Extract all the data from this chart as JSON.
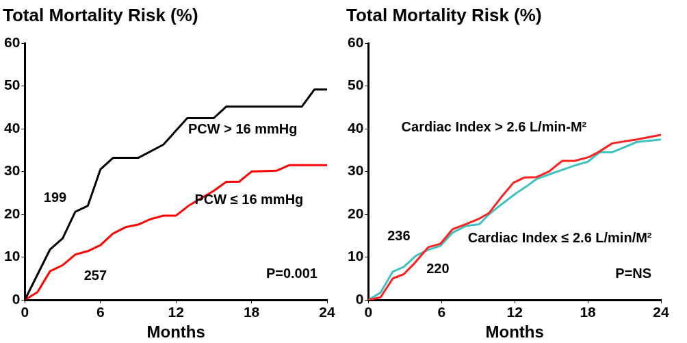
{
  "chart_data": [
    {
      "type": "line",
      "title": "Total Mortality Risk (%)",
      "xlabel": "Months",
      "xlim": [
        0,
        24
      ],
      "xticks": [
        0,
        6,
        12,
        18,
        24
      ],
      "ylim": [
        0,
        60
      ],
      "yticks": [
        0,
        10,
        20,
        30,
        40,
        50,
        60
      ],
      "grid": false,
      "legend": false,
      "marker": "none",
      "line_style": "solid",
      "series": [
        {
          "name": "PCW > 16 mmHg",
          "color": "#000000",
          "x": [
            0,
            2,
            3,
            4,
            5,
            6,
            7,
            9,
            11,
            11.7,
            12.9,
            15,
            16,
            22,
            23,
            24
          ],
          "values": [
            0,
            11.8,
            14.4,
            20.6,
            22,
            30.5,
            33.2,
            33.2,
            36.3,
            38.6,
            42.5,
            42.5,
            45.2,
            45.2,
            49.2,
            49.2
          ]
        },
        {
          "name": "PCW ≤ 16 mmHg",
          "color": "#ff0000",
          "x": [
            0,
            1,
            2,
            3,
            4,
            5,
            6,
            7,
            8,
            9,
            10,
            11,
            12,
            13,
            15,
            16,
            17,
            18,
            20,
            21,
            24
          ],
          "values": [
            0,
            1.8,
            6.7,
            8.1,
            10.6,
            11.4,
            12.8,
            15.5,
            17,
            17.6,
            18.9,
            19.7,
            19.7,
            22,
            25.5,
            27.6,
            27.6,
            30,
            30.2,
            31.5,
            31.5
          ]
        }
      ],
      "annotations": [
        "199",
        "257",
        "P=0.001"
      ]
    },
    {
      "type": "line",
      "title": "Total Mortality Risk (%)",
      "xlabel": "Months",
      "xlim": [
        0,
        24
      ],
      "xticks": [
        0,
        6,
        12,
        18,
        24
      ],
      "ylim": [
        0,
        60
      ],
      "yticks": [
        0,
        10,
        20,
        30,
        40,
        50,
        60
      ],
      "grid": false,
      "legend": false,
      "marker": "none",
      "line_style": "solid",
      "series": [
        {
          "name": "Cardiac Index > 2.6 L/min-M²",
          "color": "#ff2020",
          "x": [
            0,
            1,
            2,
            2.9,
            3.7,
            4.9,
            5.9,
            6.9,
            8,
            9.1,
            9.9,
            10.9,
            11.9,
            12.8,
            13.8,
            14.8,
            15.9,
            16.9,
            18.1,
            18.9,
            20,
            22,
            24
          ],
          "values": [
            0,
            0.6,
            5,
            6,
            8.3,
            12.3,
            13.1,
            16.5,
            17.7,
            19,
            20.3,
            24,
            27.4,
            28.6,
            28.7,
            30,
            32.5,
            32.5,
            33.4,
            34.6,
            36.6,
            37.5,
            38.6
          ]
        },
        {
          "name": "Cardiac Index ≤ 2.6 L/min/M²",
          "color": "#40c0c0",
          "x": [
            0,
            1,
            2,
            2.9,
            3.9,
            4.9,
            5.9,
            6.9,
            8,
            9.1,
            9.9,
            10.9,
            12.1,
            13,
            13.8,
            14.8,
            15.9,
            16.9,
            18,
            18.95,
            20,
            21,
            22,
            24
          ],
          "values": [
            0,
            1.7,
            6.6,
            7.7,
            10.3,
            11.7,
            12.6,
            15.7,
            17.3,
            17.7,
            20,
            22.3,
            24.9,
            26.6,
            28.3,
            29.3,
            30.4,
            31.4,
            32.3,
            34.5,
            34.5,
            35.7,
            36.9,
            37.5
          ]
        }
      ],
      "annotations": [
        "236",
        "220",
        "P=NS"
      ]
    }
  ]
}
